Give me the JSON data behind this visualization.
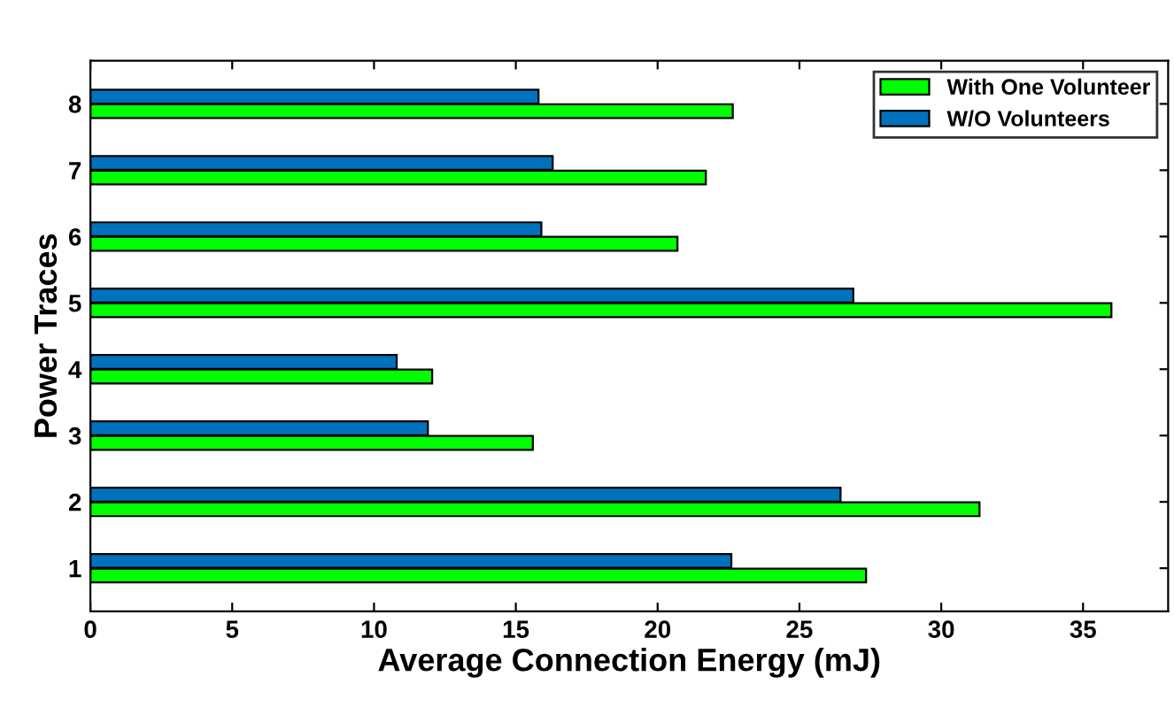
{
  "chart_data": {
    "type": "bar",
    "orientation": "horizontal",
    "xlabel": "Average Connection Energy (mJ)",
    "ylabel": "Power Traces",
    "categories": [
      "8",
      "7",
      "6",
      "5",
      "4",
      "3",
      "2",
      "1"
    ],
    "series": [
      {
        "name": "With One Volunteer",
        "color": "#00ff00",
        "values": [
          22.65,
          21.7,
          20.7,
          36.0,
          12.05,
          15.6,
          31.35,
          27.35
        ]
      },
      {
        "name": "W/O Volunteers",
        "color": "#0072bd",
        "values": [
          15.8,
          16.3,
          15.9,
          26.9,
          10.8,
          11.9,
          26.45,
          22.6
        ]
      }
    ],
    "xlim": [
      0,
      38
    ],
    "xticks": [
      0,
      5,
      10,
      15,
      20,
      25,
      30,
      35
    ],
    "grid": false,
    "legend": "top right"
  }
}
